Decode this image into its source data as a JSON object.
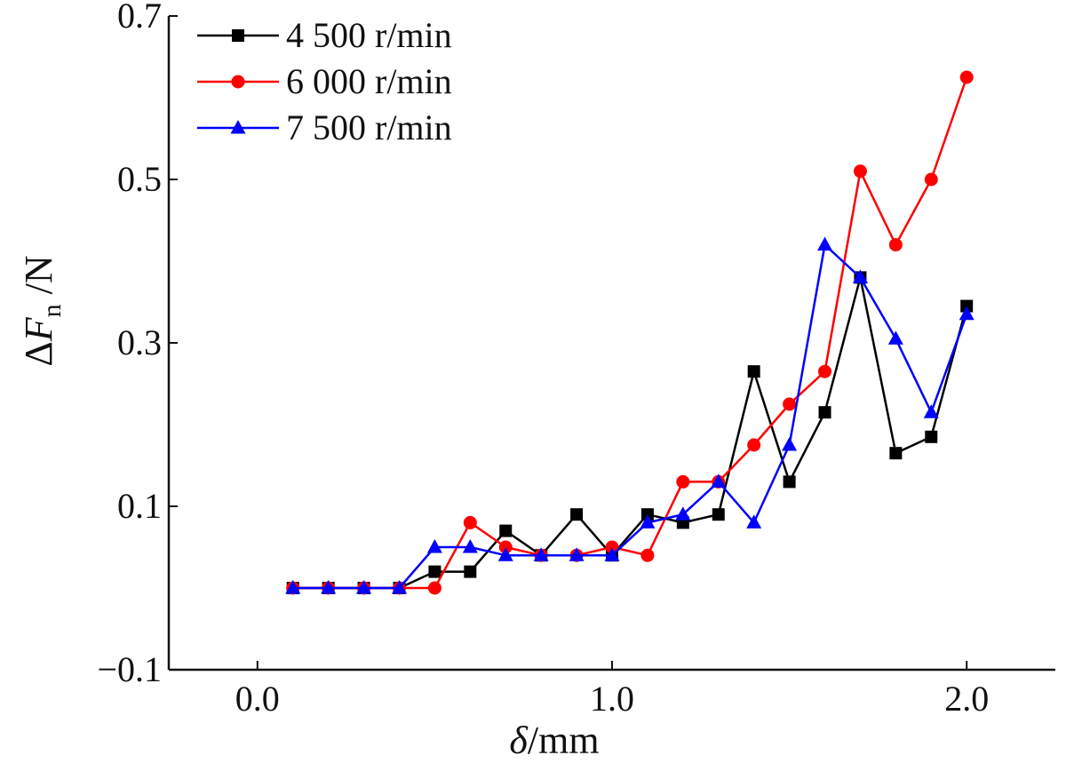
{
  "chart_data": {
    "type": "line",
    "xlabel": {
      "symbol": "δ",
      "rest": "/mm"
    },
    "ylabel": {
      "delta": "Δ",
      "symbol": "F",
      "subscript": "n",
      "rest": " /N"
    },
    "xlim": [
      -0.25,
      2.25
    ],
    "ylim": [
      -0.1,
      0.7
    ],
    "xticks": [
      0.0,
      1.0,
      2.0
    ],
    "xtick_labels": [
      "0.0",
      "1.0",
      "2.0"
    ],
    "yticks": [
      -0.1,
      0.1,
      0.3,
      0.5,
      0.7
    ],
    "ytick_labels": [
      "−0.1",
      "0.1",
      "0.3",
      "0.5",
      "0.7"
    ],
    "legend_position": "top-left",
    "grid": false,
    "x": [
      0.1,
      0.2,
      0.3,
      0.4,
      0.5,
      0.6,
      0.7,
      0.8,
      0.9,
      1.0,
      1.1,
      1.2,
      1.3,
      1.4,
      1.5,
      1.6,
      1.7,
      1.8,
      1.9,
      2.0
    ],
    "series": [
      {
        "name": "4 500 r/min",
        "color": "#000000",
        "marker": "square",
        "values": [
          0.0,
          0.0,
          0.0,
          0.0,
          0.02,
          0.02,
          0.07,
          0.04,
          0.09,
          0.04,
          0.09,
          0.08,
          0.09,
          0.265,
          0.13,
          0.215,
          0.38,
          0.165,
          0.185,
          0.345
        ]
      },
      {
        "name": "6 000 r/min",
        "color": "#ff0000",
        "marker": "circle",
        "values": [
          0.0,
          0.0,
          0.0,
          0.0,
          0.0,
          0.08,
          0.05,
          0.04,
          0.04,
          0.05,
          0.04,
          0.13,
          0.13,
          0.175,
          0.225,
          0.265,
          0.51,
          0.42,
          0.5,
          0.625
        ]
      },
      {
        "name": "7 500 r/min",
        "color": "#0000ff",
        "marker": "triangle",
        "values": [
          0.0,
          0.0,
          0.0,
          0.0,
          0.05,
          0.05,
          0.04,
          0.04,
          0.04,
          0.04,
          0.08,
          0.09,
          0.13,
          0.08,
          0.175,
          0.42,
          0.38,
          0.305,
          0.215,
          0.335
        ]
      }
    ]
  }
}
